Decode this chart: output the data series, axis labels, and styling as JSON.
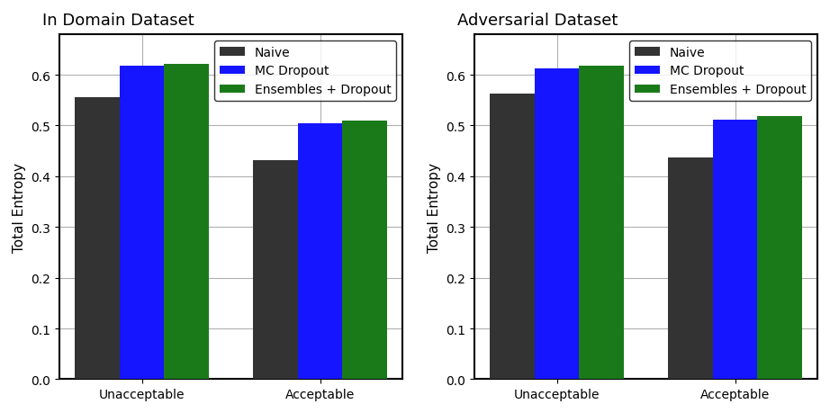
{
  "left_title": "In Domain Dataset",
  "right_title": "Adversarial Dataset",
  "categories": [
    "Unacceptable",
    "Acceptable"
  ],
  "ylabel": "Total Entropy",
  "legend_labels": [
    "Naive",
    "MC Dropout",
    "Ensembles + Dropout"
  ],
  "bar_colors": [
    "#333333",
    "#1515ff",
    "#1a7a1a"
  ],
  "left_values": {
    "Naive": [
      0.555,
      0.432
    ],
    "MC Dropout": [
      0.618,
      0.505
    ],
    "Ensembles + Dropout": [
      0.622,
      0.51
    ]
  },
  "right_values": {
    "Naive": [
      0.563,
      0.437
    ],
    "MC Dropout": [
      0.613,
      0.512
    ],
    "Ensembles + Dropout": [
      0.618,
      0.518
    ]
  },
  "ylim": [
    0.0,
    0.68
  ],
  "yticks": [
    0.0,
    0.1,
    0.2,
    0.3,
    0.4,
    0.5,
    0.6
  ],
  "bar_width": 0.25,
  "figsize": [
    9.22,
    4.6
  ],
  "dpi": 100,
  "grid_color": "#b0b0b0",
  "background_color": "#ffffff",
  "title_fontsize": 13,
  "axis_fontsize": 11,
  "tick_fontsize": 10,
  "legend_fontsize": 10
}
